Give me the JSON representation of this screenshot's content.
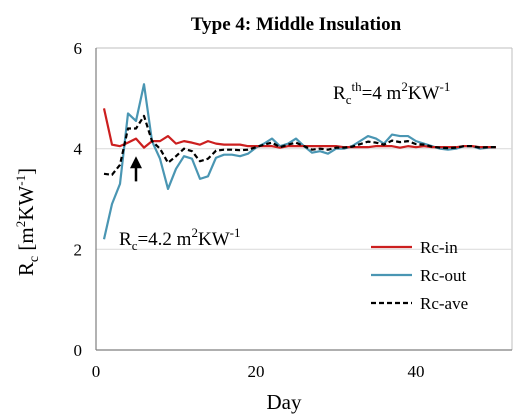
{
  "chart_data": {
    "type": "line",
    "title": "Type 4: Middle Insulation",
    "xlabel": "Day",
    "ylabel": {
      "base": "R",
      "sub": "c",
      "rest_pre": " [m",
      "sup1": "2",
      "rest_mid": "KW",
      "sup2": "-1",
      "rest_post": "]"
    },
    "xlim": [
      0,
      52
    ],
    "ylim": [
      0,
      6
    ],
    "xticks": [
      0,
      20,
      40
    ],
    "yticks": [
      0,
      2,
      4,
      6
    ],
    "grid": "horizontal-major",
    "legend_position": "right-bottom",
    "x": [
      1,
      2,
      3,
      4,
      5,
      6,
      7,
      8,
      9,
      10,
      11,
      12,
      13,
      14,
      15,
      16,
      17,
      18,
      19,
      20,
      21,
      22,
      23,
      24,
      25,
      26,
      27,
      28,
      29,
      30,
      31,
      32,
      33,
      34,
      35,
      36,
      37,
      38,
      39,
      40,
      41,
      42,
      43,
      44,
      45,
      46,
      47,
      48,
      49,
      50
    ],
    "series": [
      {
        "name": "Rc-in",
        "color": "#cc1f1f",
        "style": "solid",
        "values": [
          4.8,
          4.08,
          4.05,
          4.12,
          4.2,
          4.02,
          4.15,
          4.15,
          4.25,
          4.1,
          4.15,
          4.12,
          4.08,
          4.15,
          4.1,
          4.08,
          4.08,
          4.08,
          4.05,
          4.05,
          4.05,
          4.05,
          4.02,
          4.05,
          4.05,
          4.05,
          4.05,
          4.05,
          4.05,
          4.05,
          4.03,
          4.03,
          4.03,
          4.03,
          4.05,
          4.05,
          4.05,
          4.02,
          4.05,
          4.03,
          4.05,
          4.03,
          4.03,
          4.03,
          4.03,
          4.05,
          4.05,
          4.03,
          4.03,
          4.03
        ]
      },
      {
        "name": "Rc-out",
        "color": "#4a96b3",
        "style": "solid",
        "values": [
          2.2,
          2.9,
          3.3,
          4.7,
          4.55,
          5.28,
          4.15,
          3.8,
          3.2,
          3.6,
          3.85,
          3.8,
          3.4,
          3.45,
          3.82,
          3.88,
          3.88,
          3.85,
          3.9,
          4.02,
          4.1,
          4.2,
          4.05,
          4.1,
          4.2,
          4.05,
          3.92,
          3.95,
          3.9,
          4.0,
          4.0,
          4.05,
          4.15,
          4.25,
          4.2,
          4.1,
          4.28,
          4.25,
          4.25,
          4.15,
          4.1,
          4.05,
          4.0,
          3.98,
          4.0,
          4.05,
          4.05,
          4.0,
          4.02,
          4.03
        ]
      },
      {
        "name": "Rc-ave",
        "color": "#000000",
        "style": "dashed",
        "values": [
          3.5,
          3.48,
          3.68,
          4.4,
          4.4,
          4.65,
          4.15,
          4.0,
          3.72,
          3.85,
          4.0,
          3.95,
          3.75,
          3.8,
          3.96,
          3.98,
          3.98,
          3.97,
          3.98,
          4.03,
          4.08,
          4.12,
          4.03,
          4.08,
          4.12,
          4.05,
          3.98,
          4.0,
          3.98,
          4.02,
          4.02,
          4.04,
          4.09,
          4.14,
          4.12,
          4.08,
          4.16,
          4.13,
          4.15,
          4.09,
          4.08,
          4.04,
          4.02,
          4.01,
          4.02,
          4.05,
          4.05,
          4.02,
          4.03,
          4.03
        ]
      }
    ],
    "annotations": [
      {
        "id": "rcth",
        "base": "R",
        "sub": "c",
        "sup": "th",
        "rest": "=4 m",
        "sup2": "2",
        "tail": "KW",
        "sup3": "-1"
      },
      {
        "id": "rc42",
        "base": "R",
        "sub": "c",
        "rest": "=4.2 m",
        "sup2": "2",
        "tail": "KW",
        "sup3": "-1",
        "arrow_x": 5,
        "arrow_from_y": 3.35,
        "arrow_to_y": 3.85
      }
    ]
  }
}
